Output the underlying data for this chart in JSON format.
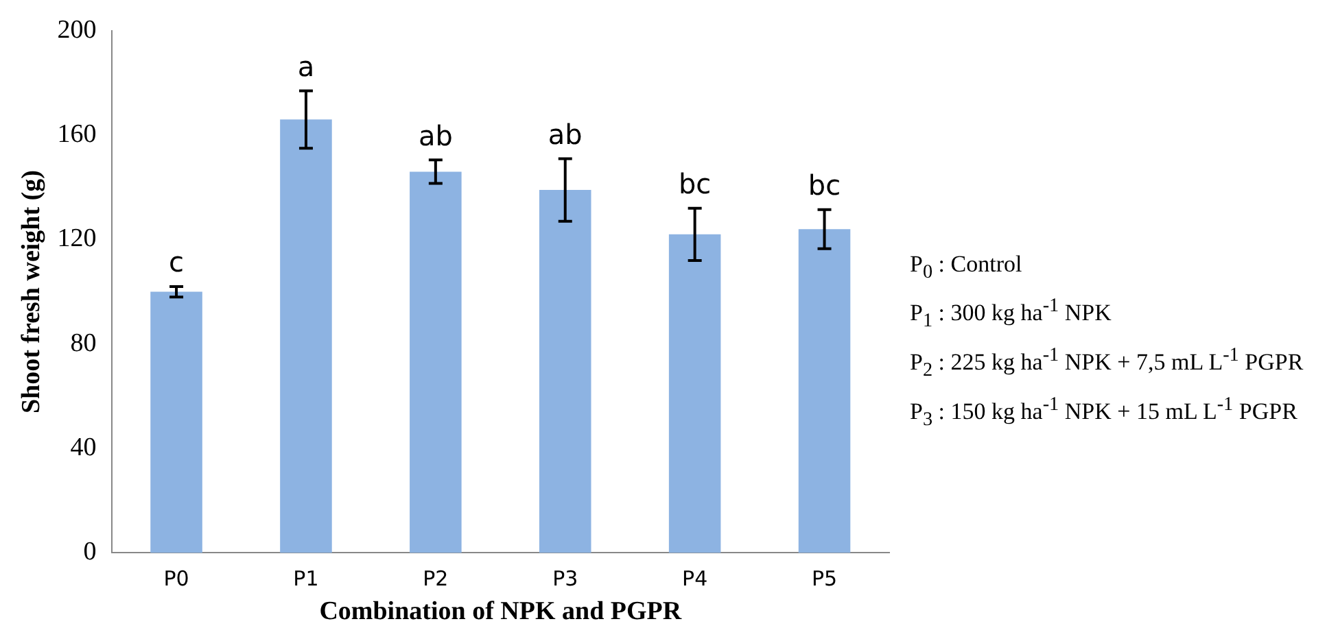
{
  "chart_data": {
    "type": "bar",
    "xlabel": "Combination of NPK and PGPR",
    "ylabel": "Shoot fresh weight (g)",
    "categories": [
      "P0",
      "P1",
      "P2",
      "P3",
      "P4",
      "P5"
    ],
    "values": [
      100,
      166,
      146,
      139,
      122,
      124
    ],
    "errors": [
      2,
      11,
      4.5,
      12,
      10,
      7.5
    ],
    "color": "#8db3e2",
    "ylim": [
      0,
      200
    ],
    "yticks": [
      0,
      40,
      80,
      120,
      160,
      200
    ],
    "grid": false,
    "legend": false,
    "annotations": [
      {
        "text": "c",
        "x": "P0",
        "y": 102
      },
      {
        "text": "a",
        "x": "P1",
        "y": 177
      },
      {
        "text": "ab",
        "x": "P2",
        "y": 150.5
      },
      {
        "text": "ab",
        "x": "P3",
        "y": 151
      },
      {
        "text": "bc",
        "x": "P4",
        "y": 132
      },
      {
        "text": "bc",
        "x": "P5",
        "y": 131.5
      },
      "P$_{0}$ : Control",
      "P$_{1}$ : 300 kg ha$^{-1}$ NPK",
      "P$_{2}$ : 225 kg ha$^{-1}$ NPK + 7,5 mL L$^{-1}$ PGPR",
      "P$_{3}$ : 150  kg ha$^{-1}$ NPK + 15 mL L$^{-1}$ PGPR"
    ]
  }
}
